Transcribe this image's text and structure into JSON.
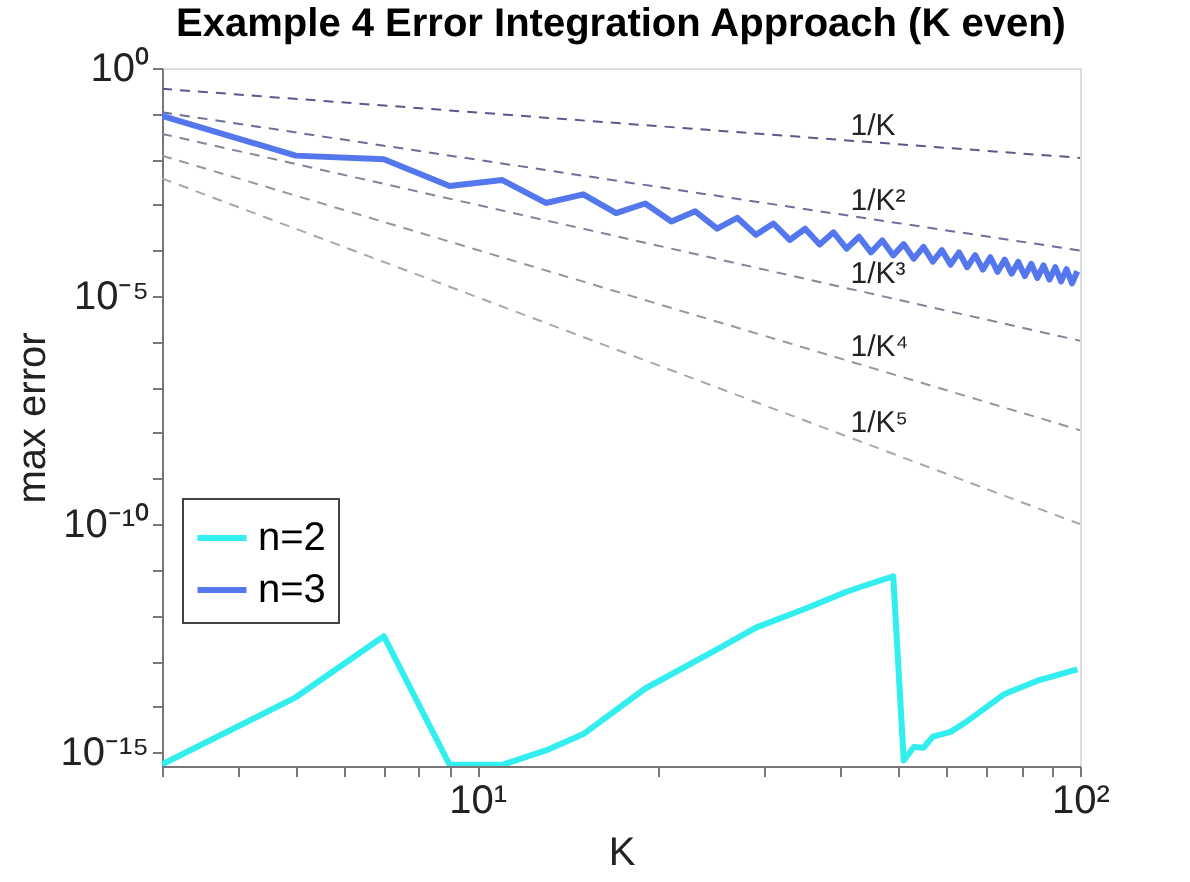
{
  "chart_data": {
    "type": "line",
    "title": "Example 4 Error Integration Approach (K even)",
    "xlabel": "K",
    "ylabel": "max error",
    "log": "xy",
    "grid": false,
    "legend": "left",
    "line_style": "solid",
    "marker": "none",
    "xlim": [
      3,
      100
    ],
    "ylim": [
      5e-16,
      1
    ],
    "xticks": [
      {
        "value": 3,
        "label": null
      },
      {
        "value": 4,
        "label": null
      },
      {
        "value": 5,
        "label": null
      },
      {
        "value": 6,
        "label": null
      },
      {
        "value": 7,
        "label": null
      },
      {
        "value": 8,
        "label": null
      },
      {
        "value": 9,
        "label": null
      },
      {
        "value": 10,
        "label": "10¹"
      },
      {
        "value": 20,
        "label": null
      },
      {
        "value": 30,
        "label": null
      },
      {
        "value": 40,
        "label": null
      },
      {
        "value": 50,
        "label": null
      },
      {
        "value": 60,
        "label": null
      },
      {
        "value": 70,
        "label": null
      },
      {
        "value": 80,
        "label": null
      },
      {
        "value": 90,
        "label": null
      },
      {
        "value": 100,
        "label": "10²"
      }
    ],
    "yticks": [
      {
        "value": 1e-15,
        "label": "10⁻¹⁵"
      },
      {
        "value": 1e-14,
        "label": null
      },
      {
        "value": 1e-13,
        "label": null
      },
      {
        "value": 1e-12,
        "label": null
      },
      {
        "value": 1e-11,
        "label": null
      },
      {
        "value": 1e-10,
        "label": "10⁻¹⁰"
      },
      {
        "value": 1e-09,
        "label": null
      },
      {
        "value": 1e-08,
        "label": null
      },
      {
        "value": 1e-07,
        "label": null
      },
      {
        "value": 1e-06,
        "label": null
      },
      {
        "value": 1e-05,
        "label": "10⁻⁵"
      },
      {
        "value": 0.0001,
        "label": null
      },
      {
        "value": 0.001,
        "label": null
      },
      {
        "value": 0.01,
        "label": null
      },
      {
        "value": 0.1,
        "label": null
      },
      {
        "value": 1,
        "label": "10⁰"
      }
    ],
    "series": [
      {
        "name": "1/K",
        "color": "#5a5a8a",
        "line_style": "dashed",
        "x": [
          3,
          100
        ],
        "values": [
          0.35,
          0.0107
        ]
      },
      {
        "name": "1/K²",
        "color": "#6e6e96",
        "line_style": "dashed",
        "x": [
          3,
          100
        ],
        "values": [
          0.107,
          0.0001
        ]
      },
      {
        "name": "1/K³",
        "color": "#85859a",
        "line_style": "dashed",
        "x": [
          3,
          100
        ],
        "values": [
          0.036,
          1.05e-06
        ]
      },
      {
        "name": "1/K⁴",
        "color": "#979797",
        "line_style": "dashed",
        "x": [
          3,
          100
        ],
        "values": [
          0.012,
          1.15e-08
        ]
      },
      {
        "name": "1/K⁵",
        "color": "#a8a8a8",
        "line_style": "dashed",
        "x": [
          3,
          100
        ],
        "values": [
          0.0038,
          1e-10
        ]
      },
      {
        "name": "n=2",
        "color": "#33eeee",
        "x": [
          3,
          5,
          7,
          9,
          11,
          13,
          15,
          19,
          25,
          29,
          35,
          41,
          45,
          49,
          51,
          53,
          55,
          57,
          61,
          65,
          75,
          85,
          99
        ],
        "values": [
          5.4e-16,
          1.6e-14,
          3.5e-13,
          5.3e-16,
          5.3e-16,
          1.1e-15,
          2.5e-15,
          2.5e-14,
          1.8e-13,
          5.4e-13,
          1.4e-12,
          3.3e-12,
          5e-12,
          7.2e-12,
          6.6e-16,
          1.3e-15,
          1.26e-15,
          2.2e-15,
          2.8e-15,
          4.8e-15,
          1.9e-14,
          3.7e-14,
          6.6e-14
        ]
      },
      {
        "name": "n=3",
        "color": "#5577ee",
        "x": [
          3,
          5,
          7,
          9,
          11,
          13,
          15,
          17,
          19,
          21,
          23,
          25,
          27,
          29,
          31,
          33,
          35,
          37,
          39,
          41,
          43,
          45,
          47,
          49,
          51,
          53,
          55,
          57,
          59,
          61,
          63,
          65,
          67,
          69,
          71,
          73,
          75,
          77,
          79,
          81,
          83,
          85,
          87,
          89,
          91,
          93,
          95,
          97,
          99
        ],
        "values": [
          0.089,
          0.012,
          0.01,
          0.0026,
          0.0035,
          0.0011,
          0.0017,
          0.00066,
          0.00107,
          0.00043,
          0.00072,
          0.0003,
          0.00052,
          0.00022,
          0.00039,
          0.00017,
          0.0003,
          0.000135,
          0.00025,
          0.00011,
          0.0002,
          9.1e-05,
          0.000166,
          7.8e-05,
          0.000138,
          6.6e-05,
          0.00012,
          5.7e-05,
          0.000102,
          4.9e-05,
          9.1e-05,
          4.3e-05,
          7.9e-05,
          3.8e-05,
          7.1e-05,
          3.4e-05,
          6.3e-05,
          3.1e-05,
          5.6e-05,
          2.75e-05,
          5.1e-05,
          2.5e-05,
          4.7e-05,
          2.3e-05,
          4.3e-05,
          2.1e-05,
          3.9e-05,
          1.9e-05,
          3.5e-05
        ]
      }
    ]
  }
}
